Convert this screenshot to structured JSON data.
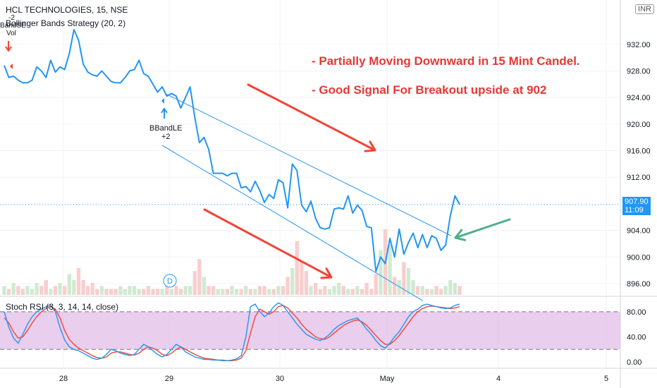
{
  "header": {
    "title": "HCL TECHNOLOGIES, 15, NSE",
    "indicator": "Bollinger Bands Strategy (20, 2)",
    "stoch_label": "Stoch RSI (3, 3, 14, 14, close)"
  },
  "currency_label": "INR",
  "annotations": {
    "line1": "- Partially Moving Downward in 15 Mint Candel.",
    "line2": "- Good Signal For Breakout upside at 902"
  },
  "signals": {
    "entry_label": "BBandLE",
    "entry_qty": "+2",
    "exit_label": "BandSE",
    "exit_qty": "-2",
    "exit_sub": "Vol"
  },
  "event_marker": "D",
  "last_price": {
    "value": "907.90",
    "countdown": "11:09"
  },
  "colors": {
    "price_line": "#2196f3",
    "channel": "#2196f3",
    "arrow_red": "#f44336",
    "arrow_green": "#4caf8a",
    "stoch_k": "#2196f3",
    "stoch_d": "#f44336",
    "band_fill": "#e1bee7",
    "text_red": "#e53935",
    "badge": "#2196f3"
  },
  "chart_data": {
    "type": "line",
    "x_ticks": [
      "28",
      "29",
      "30",
      "May",
      "4",
      "5"
    ],
    "price_ticks": [
      "932.00",
      "928.00",
      "924.00",
      "920.00",
      "916.00",
      "912.00",
      "904.00",
      "900.00",
      "896.00"
    ],
    "price_ylim": [
      894.3,
      937.6
    ],
    "price": [
      928.8,
      927.0,
      927.2,
      926.6,
      926.2,
      926.2,
      926.6,
      928.6,
      928.0,
      927.0,
      929.6,
      927.8,
      928.6,
      928.2,
      930.6,
      934.2,
      932.6,
      929.0,
      927.8,
      927.4,
      927.2,
      928.0,
      927.2,
      926.4,
      926.2,
      926.2,
      927.0,
      928.0,
      928.2,
      929.6,
      927.6,
      927.2,
      926.0,
      924.8,
      925.6,
      924.2,
      924.6,
      924.2,
      922.4,
      924.0,
      925.6,
      921.0,
      917.2,
      918.0,
      916.2,
      912.6,
      912.6,
      912.6,
      912.2,
      912.6,
      912.6,
      910.4,
      910.6,
      909.8,
      911.4,
      910.0,
      908.2,
      909.4,
      908.8,
      911.6,
      911.2,
      907.4,
      914.0,
      913.0,
      907.8,
      906.8,
      908.4,
      905.8,
      904.4,
      904.2,
      904.4,
      907.2,
      907.4,
      907.2,
      909.2,
      906.6,
      907.8,
      907.0,
      904.6,
      904.4,
      897.8,
      900.0,
      899.0,
      902.8,
      900.0,
      904.2,
      900.4,
      902.2,
      903.6,
      901.4,
      903.4,
      901.4,
      903.2,
      902.8,
      901.0,
      901.8,
      906.2,
      909.2,
      907.9
    ],
    "channel": {
      "upper": [
        [
          924.6,
          925.4
        ],
        [
          903.2,
          901.6
        ]
      ],
      "lower": [
        [
          916.8,
          915.6
        ],
        [
          896.2,
          893.4
        ]
      ]
    },
    "volume": [
      3,
      2,
      4,
      3,
      2,
      3,
      2,
      4,
      3,
      5,
      2,
      3,
      4,
      3,
      7,
      5,
      9,
      5,
      3,
      4,
      2,
      3,
      2,
      2,
      2,
      3,
      2,
      3,
      3,
      2,
      2,
      3,
      2,
      2,
      2,
      3,
      2,
      3,
      2,
      3,
      3,
      8,
      12,
      6,
      3,
      3,
      2,
      2,
      2,
      3,
      2,
      2,
      3,
      2,
      2,
      3,
      3,
      2,
      2,
      3,
      3,
      6,
      9,
      18,
      11,
      8,
      3,
      4,
      2,
      3,
      2,
      3,
      4,
      3,
      2,
      2,
      3,
      2,
      4,
      2,
      7,
      15,
      22,
      17,
      6,
      5,
      11,
      9,
      5,
      3,
      3,
      2,
      2,
      3,
      2,
      3,
      5,
      4,
      3
    ],
    "stoch": {
      "ticks": [
        "80.00",
        "40.00",
        "0.00"
      ],
      "ylim": [
        -10,
        100
      ],
      "band": [
        20,
        80
      ],
      "k": [
        80,
        55,
        38,
        30,
        44,
        60,
        72,
        80,
        84,
        88,
        90,
        80,
        55,
        35,
        24,
        20,
        18,
        14,
        10,
        6,
        4,
        6,
        12,
        20,
        18,
        14,
        12,
        10,
        12,
        20,
        28,
        24,
        18,
        12,
        8,
        12,
        20,
        28,
        24,
        16,
        12,
        8,
        6,
        4,
        4,
        3,
        3,
        2,
        2,
        3,
        5,
        10,
        40,
        88,
        92,
        80,
        72,
        78,
        88,
        94,
        90,
        80,
        70,
        60,
        52,
        44,
        40,
        36,
        34,
        38,
        44,
        52,
        58,
        62,
        66,
        68,
        70,
        62,
        52,
        44,
        34,
        26,
        22,
        30,
        40,
        48,
        60,
        72,
        80,
        84,
        90,
        92,
        90,
        88,
        86,
        85,
        86,
        90,
        92
      ],
      "d": [
        70,
        62,
        48,
        38,
        40,
        50,
        62,
        72,
        80,
        85,
        88,
        84,
        70,
        50,
        36,
        28,
        22,
        18,
        14,
        10,
        7,
        6,
        8,
        14,
        16,
        16,
        14,
        12,
        11,
        14,
        20,
        24,
        22,
        18,
        12,
        10,
        14,
        20,
        24,
        20,
        16,
        12,
        9,
        6,
        5,
        4,
        3,
        3,
        2,
        2,
        3,
        6,
        18,
        46,
        72,
        84,
        80,
        76,
        80,
        88,
        90,
        86,
        78,
        70,
        60,
        52,
        46,
        40,
        37,
        36,
        40,
        46,
        52,
        58,
        62,
        65,
        67,
        64,
        58,
        50,
        42,
        34,
        28,
        28,
        34,
        42,
        52,
        62,
        72,
        80,
        85,
        88,
        89,
        88,
        87,
        86,
        85,
        86,
        88
      ]
    }
  }
}
